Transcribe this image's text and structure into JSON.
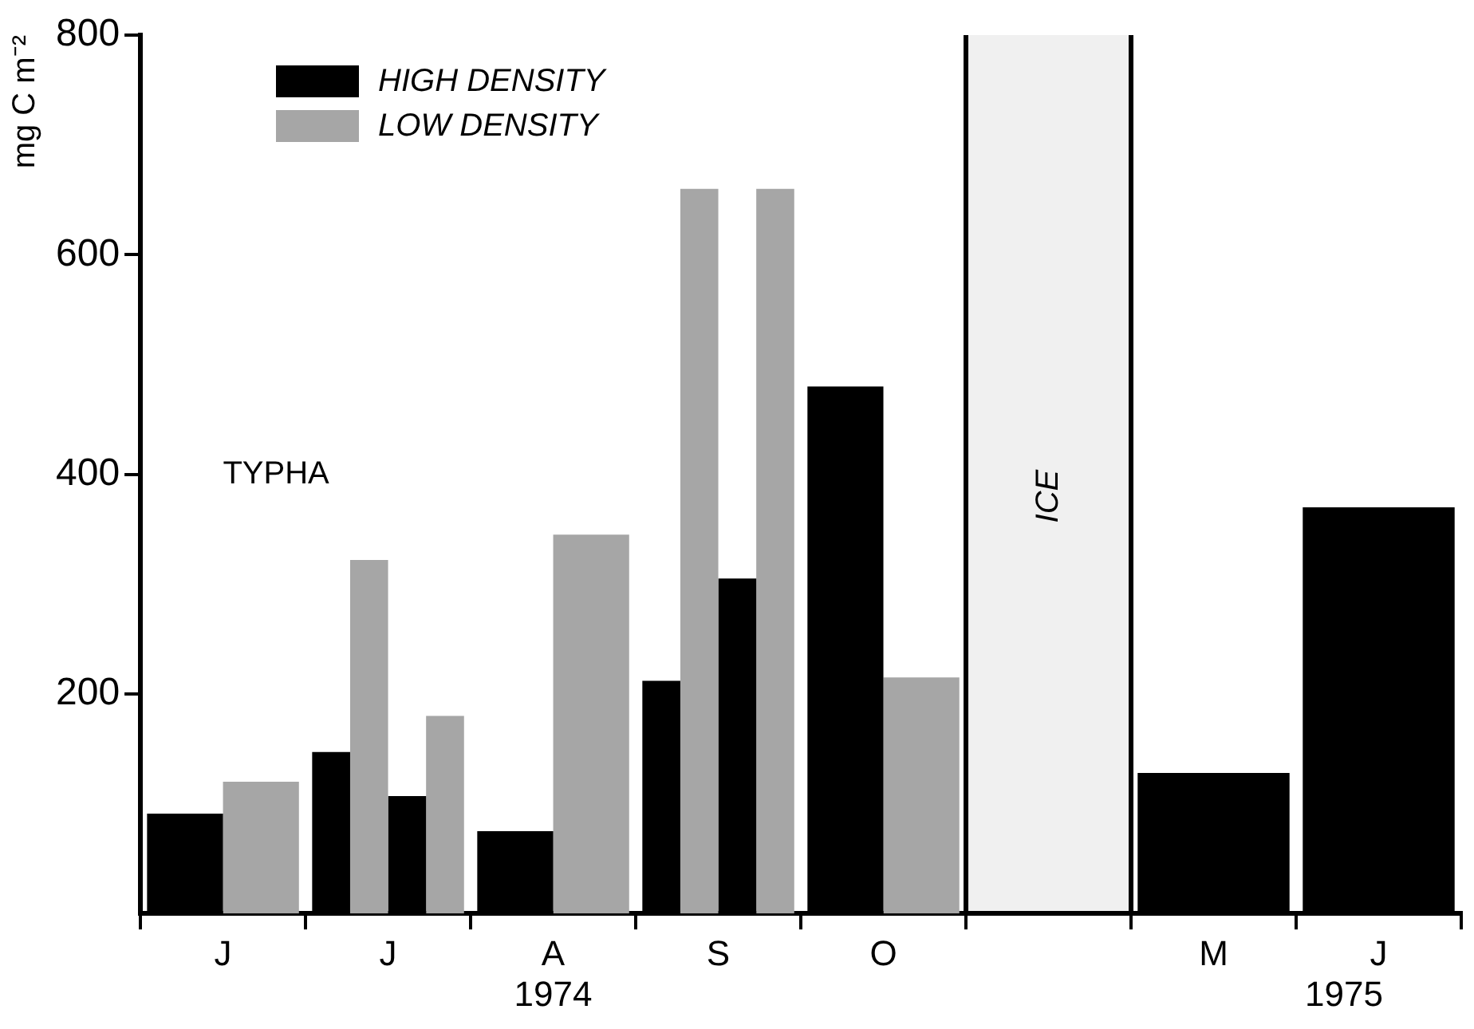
{
  "chart_data": {
    "type": "bar",
    "ylabel": "mg C m⁻²",
    "categories": [
      "J",
      "J",
      "A",
      "S",
      "O",
      null,
      "M",
      "J"
    ],
    "series": [
      {
        "name": "HIGH DENSITY",
        "color": "#000000",
        "values": [
          91,
          147,
          75,
          212,
          480,
          null,
          128,
          370
        ]
      },
      {
        "name": "LOW DENSITY",
        "color": "#a6a6a6",
        "values": [
          120,
          322,
          345,
          660,
          215,
          null,
          null,
          null
        ]
      },
      {
        "color": "#000000",
        "values": [
          null,
          107,
          null,
          305,
          null,
          null,
          null,
          null
        ]
      },
      {
        "color": "#a6a6a6",
        "values": [
          null,
          180,
          null,
          660,
          null,
          null,
          null,
          null
        ]
      }
    ],
    "ylim": [
      0,
      800
    ],
    "yticks": [
      200,
      400,
      600,
      800
    ],
    "grid": false,
    "legend": "top left",
    "bands": [
      {
        "axis": "x",
        "from": "O",
        "to": "M",
        "label": "ICE",
        "color": "#000000"
      }
    ],
    "annotations": [
      "TYPHA",
      "1974",
      "1975"
    ]
  }
}
